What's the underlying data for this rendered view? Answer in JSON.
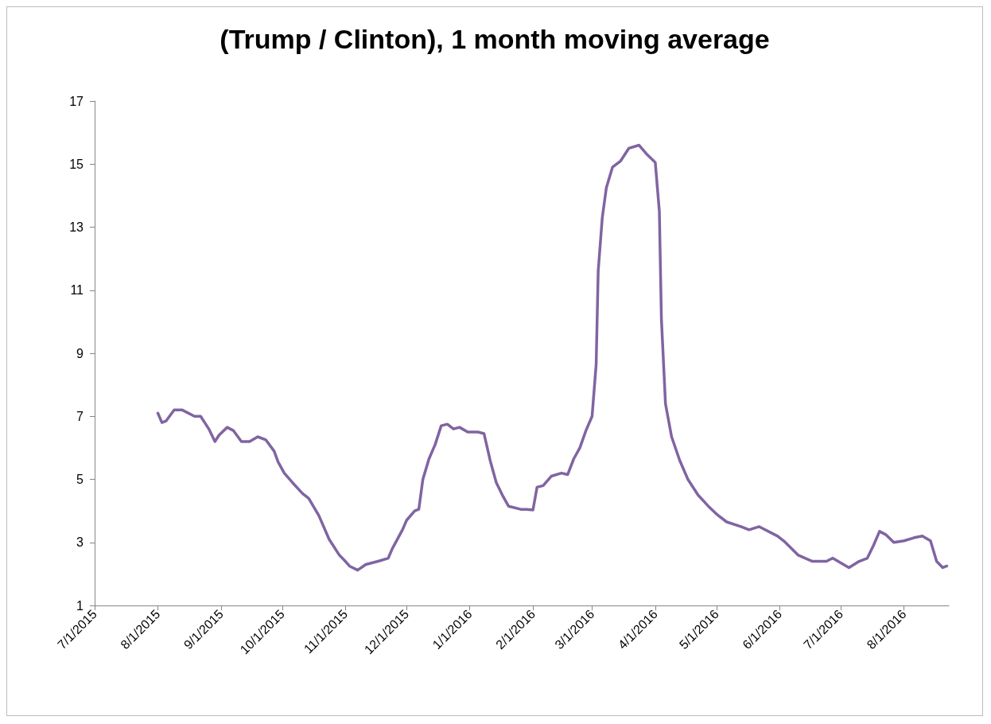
{
  "chart_data": {
    "type": "line",
    "title": "(Trump / Clinton), 1 month moving average",
    "x": [
      "2015-08-01",
      "2015-08-03",
      "2015-08-05",
      "2015-08-09",
      "2015-08-13",
      "2015-08-19",
      "2015-08-22",
      "2015-08-26",
      "2015-08-29",
      "2015-08-31",
      "2015-09-04",
      "2015-09-07",
      "2015-09-11",
      "2015-09-15",
      "2015-09-19",
      "2015-09-23",
      "2015-09-27",
      "2015-09-29",
      "2015-10-02",
      "2015-10-06",
      "2015-10-11",
      "2015-10-14",
      "2015-10-19",
      "2015-10-24",
      "2015-10-29",
      "2015-11-01",
      "2015-11-03",
      "2015-11-07",
      "2015-11-11",
      "2015-11-17",
      "2015-11-22",
      "2015-11-24",
      "2015-11-29",
      "2015-12-01",
      "2015-12-05",
      "2015-12-07",
      "2015-12-09",
      "2015-12-12",
      "2015-12-15",
      "2015-12-18",
      "2015-12-21",
      "2015-12-24",
      "2015-12-27",
      "2015-12-31",
      "2016-01-05",
      "2016-01-08",
      "2016-01-11",
      "2016-01-14",
      "2016-01-17",
      "2016-01-20",
      "2016-01-26",
      "2016-01-29",
      "2016-02-01",
      "2016-02-03",
      "2016-02-06",
      "2016-02-10",
      "2016-02-15",
      "2016-02-18",
      "2016-02-21",
      "2016-02-24",
      "2016-02-27",
      "2016-03-01",
      "2016-03-03",
      "2016-03-04",
      "2016-03-06",
      "2016-03-08",
      "2016-03-11",
      "2016-03-15",
      "2016-03-19",
      "2016-03-24",
      "2016-03-28",
      "2016-04-01",
      "2016-04-03",
      "2016-04-04",
      "2016-04-06",
      "2016-04-09",
      "2016-04-13",
      "2016-04-17",
      "2016-04-22",
      "2016-04-27",
      "2016-05-01",
      "2016-05-06",
      "2016-05-13",
      "2016-05-17",
      "2016-05-22",
      "2016-05-31",
      "2016-06-03",
      "2016-06-10",
      "2016-06-17",
      "2016-06-24",
      "2016-06-27",
      "2016-07-01",
      "2016-07-05",
      "2016-07-10",
      "2016-07-14",
      "2016-07-17",
      "2016-07-20",
      "2016-07-23",
      "2016-07-27",
      "2016-08-01",
      "2016-08-06",
      "2016-08-10",
      "2016-08-14",
      "2016-08-17",
      "2016-08-20",
      "2016-08-22"
    ],
    "series": [
      {
        "color": "#8064a2",
        "values": [
          7.1,
          6.8,
          6.85,
          7.2,
          7.2,
          7.0,
          7.0,
          6.6,
          6.2,
          6.4,
          6.65,
          6.55,
          6.2,
          6.2,
          6.35,
          6.25,
          5.9,
          5.55,
          5.2,
          4.9,
          4.55,
          4.4,
          3.85,
          3.1,
          2.6,
          2.4,
          2.25,
          2.12,
          2.3,
          2.4,
          2.5,
          2.8,
          3.4,
          3.7,
          4.0,
          4.05,
          5.0,
          5.65,
          6.1,
          6.7,
          6.75,
          6.6,
          6.65,
          6.5,
          6.5,
          6.45,
          5.6,
          4.9,
          4.5,
          4.15,
          4.05,
          4.05,
          4.03,
          4.75,
          4.8,
          5.1,
          5.2,
          5.15,
          5.65,
          6.0,
          6.55,
          7.0,
          8.65,
          11.6,
          13.3,
          14.25,
          14.9,
          15.1,
          15.5,
          15.6,
          15.3,
          15.05,
          13.5,
          10.1,
          7.4,
          6.35,
          5.6,
          5.0,
          4.5,
          4.15,
          3.9,
          3.65,
          3.5,
          3.4,
          3.5,
          3.2,
          3.05,
          2.6,
          2.4,
          2.4,
          2.5,
          2.35,
          2.2,
          2.4,
          2.5,
          2.9,
          3.35,
          3.25,
          3.0,
          3.05,
          3.15,
          3.2,
          3.05,
          2.4,
          2.2,
          2.25
        ]
      }
    ],
    "xlim": [
      "2015-07-01",
      "2016-08-23"
    ],
    "xticks": [
      {
        "value": "2015-07-01",
        "label": "7/1/2015"
      },
      {
        "value": "2015-08-01",
        "label": "8/1/2015"
      },
      {
        "value": "2015-09-01",
        "label": "9/1/2015"
      },
      {
        "value": "2015-10-01",
        "label": "10/1/2015"
      },
      {
        "value": "2015-11-01",
        "label": "11/1/2015"
      },
      {
        "value": "2015-12-01",
        "label": "12/1/2015"
      },
      {
        "value": "2016-01-01",
        "label": "1/1/2016"
      },
      {
        "value": "2016-02-01",
        "label": "2/1/2016"
      },
      {
        "value": "2016-03-01",
        "label": "3/1/2016"
      },
      {
        "value": "2016-04-01",
        "label": "4/1/2016"
      },
      {
        "value": "2016-05-01",
        "label": "5/1/2016"
      },
      {
        "value": "2016-06-01",
        "label": "6/1/2016"
      },
      {
        "value": "2016-07-01",
        "label": "7/1/2016"
      },
      {
        "value": "2016-08-01",
        "label": "8/1/2016"
      }
    ],
    "ylim": [
      1,
      17
    ],
    "yticks": [
      1,
      3,
      5,
      7,
      9,
      11,
      13,
      15,
      17
    ],
    "grid": false,
    "marker": "none",
    "line_style": "solid"
  }
}
